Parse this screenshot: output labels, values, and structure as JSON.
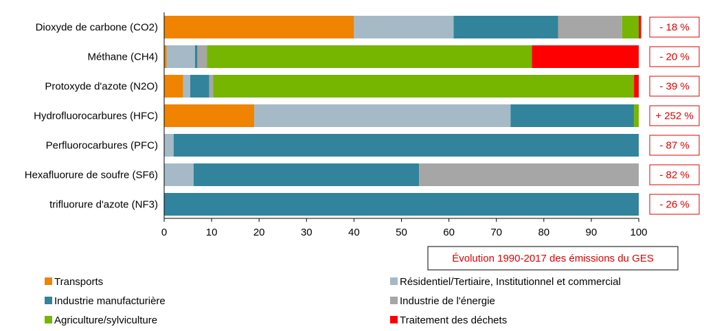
{
  "chart_data": {
    "type": "bar",
    "orientation": "horizontal",
    "stacked": true,
    "categories": [
      "Dioxyde de carbone (CO2)",
      "Méthane (CH4)",
      "Protoxyde d'azote (N2O)",
      "Hydrofluorocarbures (HFC)",
      "Perfluorocarbures (PFC)",
      "Hexafluorure de soufre (SF6)",
      "trifluorure d'azote (NF3)"
    ],
    "series": [
      {
        "name": "Transports",
        "color": "#f08300",
        "values": [
          40,
          0.5,
          4,
          19,
          0,
          0,
          0
        ]
      },
      {
        "name": "Résidentiel/Tertiaire, Institutionnel et commercial",
        "color": "#a5bac6",
        "values": [
          21,
          6,
          1.5,
          54,
          2,
          6.2,
          0
        ]
      },
      {
        "name": "Industrie manufacturière",
        "color": "#31849b",
        "values": [
          22,
          0.5,
          4,
          26,
          98,
          47.5,
          100
        ]
      },
      {
        "name": "Industrie de l'énergie",
        "color": "#a6a6a6",
        "values": [
          13.5,
          2,
          0.8,
          0,
          0,
          46.3,
          0
        ]
      },
      {
        "name": "Agriculture/sylviculture",
        "color": "#76b500",
        "values": [
          3.5,
          68.5,
          88.7,
          1,
          0,
          0,
          0
        ]
      },
      {
        "name": "Traitement des déchets",
        "color": "#ff0000",
        "values": [
          0.5,
          22.5,
          1,
          0,
          0,
          0,
          0
        ]
      }
    ],
    "xlim": [
      0,
      100
    ],
    "xticks": [
      "0",
      "10",
      "20",
      "30",
      "40",
      "50",
      "60",
      "70",
      "80",
      "90",
      "100"
    ],
    "evolution": [
      "- 18 %",
      "- 20 %",
      "- 39 %",
      "+ 252 %",
      "- 87 %",
      "- 82 %",
      "- 26 %"
    ],
    "evolution_title": "Évolution 1990-2017  des émissions du GES",
    "legend_position": "bottom",
    "grid": false
  }
}
